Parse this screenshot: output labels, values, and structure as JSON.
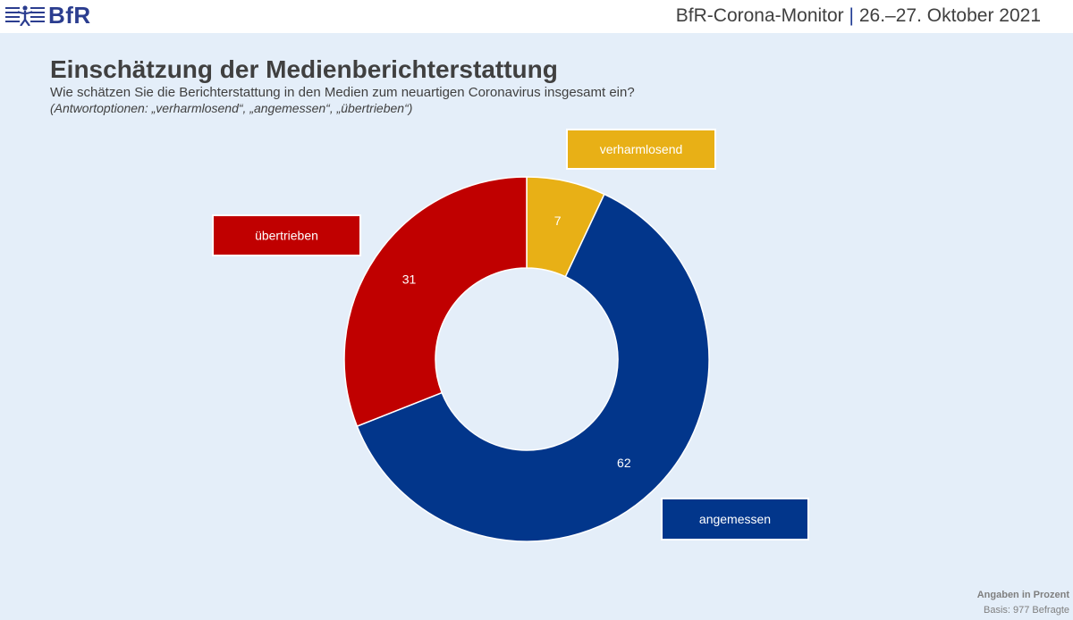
{
  "header": {
    "logo_text": "BfR",
    "title_left": "BfR-Corona-Monitor",
    "separator": "|",
    "title_right": "26.–27. Oktober 2021"
  },
  "slide": {
    "title": "Einschätzung der Medienberichterstattung",
    "question": "Wie schätzen Sie die Berichterstattung in den Medien zum neuartigen Coronavirus insgesamt ein?",
    "options_note": "(Antwortoptionen: „verharmlosend“, „angemessen“, „übertrieben“)"
  },
  "footer": {
    "unit": "Angaben in Prozent",
    "base": "Basis: 977 Befragte"
  },
  "chart_data": {
    "type": "pie",
    "variant": "donut",
    "slices": [
      {
        "label": "verharmlosend",
        "value": 7,
        "color": "#e8b016"
      },
      {
        "label": "angemessen",
        "value": 62,
        "color": "#02368b"
      },
      {
        "label": "übertrieben",
        "value": 31,
        "color": "#c00000"
      }
    ],
    "start": "12 o'clock",
    "direction": "clockwise",
    "data_labels": true,
    "legend": "callout boxes beside slices"
  }
}
